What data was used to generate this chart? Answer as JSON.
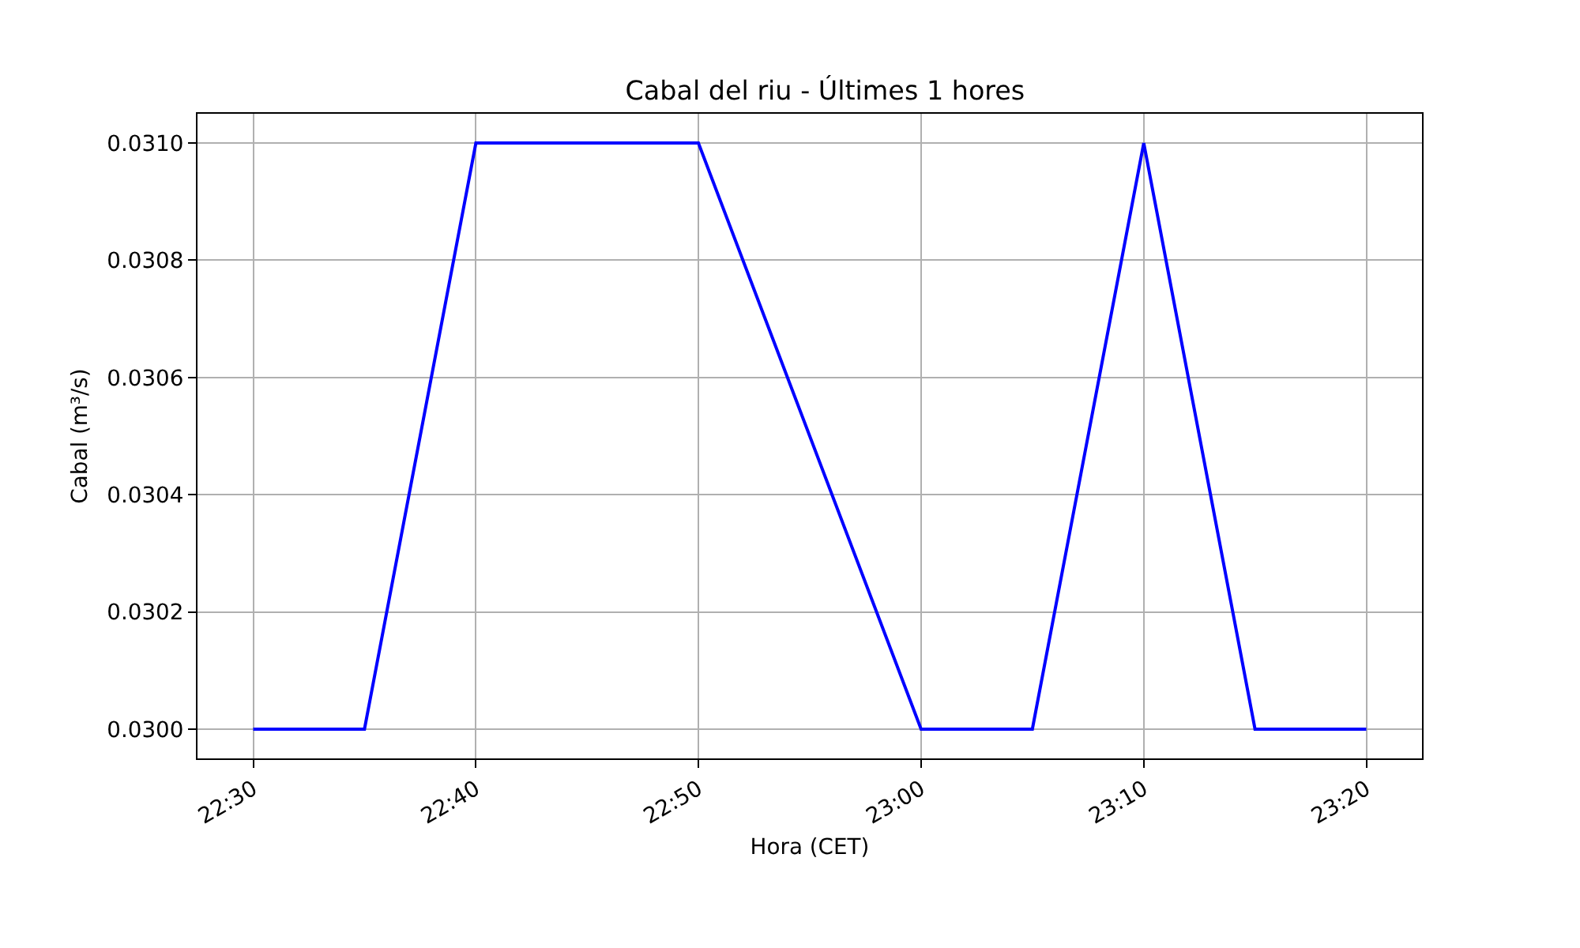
{
  "chart_data": {
    "type": "line",
    "title": "Cabal del riu - Últimes 1 hores",
    "xlabel": "Hora (CET)",
    "ylabel": "Cabal (m³/s)",
    "x": [
      22.5,
      22.5833,
      22.6667,
      22.8333,
      23.0,
      23.0833,
      23.1667,
      23.25,
      23.3333
    ],
    "series": [
      {
        "color": "#0000ff",
        "values": [
          0.03,
          0.03,
          0.031,
          0.031,
          0.03,
          0.03,
          0.031,
          0.03,
          0.03
        ]
      }
    ],
    "xlim": [
      22.4583,
      23.375
    ],
    "xticks": [
      {
        "value": 22.5,
        "label": "22:30"
      },
      {
        "value": 22.6667,
        "label": "22:40"
      },
      {
        "value": 22.8333,
        "label": "22:50"
      },
      {
        "value": 23.0,
        "label": "23:00"
      },
      {
        "value": 23.1667,
        "label": "23:10"
      },
      {
        "value": 23.3333,
        "label": "23:20"
      }
    ],
    "ylim": [
      0.02995,
      0.03105
    ],
    "yticks": [
      {
        "value": 0.03,
        "label": "0.0300"
      },
      {
        "value": 0.0302,
        "label": "0.0302"
      },
      {
        "value": 0.0304,
        "label": "0.0304"
      },
      {
        "value": 0.0306,
        "label": "0.0306"
      },
      {
        "value": 0.0308,
        "label": "0.0308"
      },
      {
        "value": 0.031,
        "label": "0.0310"
      }
    ],
    "grid": true,
    "marker": "none",
    "line_style": "solid"
  }
}
